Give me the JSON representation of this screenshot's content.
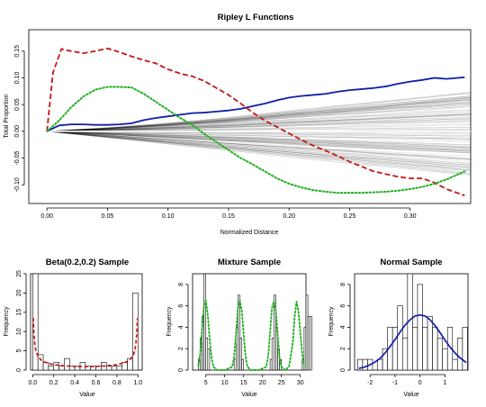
{
  "colors": {
    "blue": "#0f1ea8",
    "red": "#c41616",
    "green": "#22b022",
    "sims": "#000000",
    "zero": "#ffffff"
  },
  "chart_data": [
    {
      "id": "ripley",
      "type": "line",
      "title": "Ripley L Functions",
      "xlabel": "Normalized Distance",
      "ylabel": "Total Proportion",
      "xlim": [
        -0.015,
        0.35
      ],
      "ylim": [
        -0.135,
        0.19
      ],
      "xticks": [
        0.0,
        0.05,
        0.1,
        0.15,
        0.2,
        0.25,
        0.3
      ],
      "xtick_labels": [
        "0.00",
        "0.05",
        "0.10",
        "0.15",
        "0.20",
        "0.25",
        "0.30"
      ],
      "yticks": [
        -0.1,
        -0.05,
        0.0,
        0.05,
        0.1,
        0.15
      ],
      "ytick_labels": [
        "-0.10",
        "-0.05",
        "0.00",
        "0.05",
        "0.10",
        "0.15"
      ],
      "envelope": {
        "x": [
          0.0,
          0.05,
          0.1,
          0.15,
          0.2,
          0.25,
          0.3,
          0.35
        ],
        "upper": [
          0.0,
          0.007,
          0.016,
          0.027,
          0.04,
          0.052,
          0.064,
          0.076
        ],
        "lower": [
          0.0,
          -0.012,
          -0.024,
          -0.036,
          -0.048,
          -0.06,
          -0.072,
          -0.084
        ],
        "count": 120
      },
      "series": [
        {
          "color_key": "blue",
          "style": "solid",
          "x": [
            0.0,
            0.01,
            0.02,
            0.03,
            0.04,
            0.05,
            0.06,
            0.07,
            0.08,
            0.09,
            0.1,
            0.11,
            0.12,
            0.13,
            0.14,
            0.15,
            0.16,
            0.17,
            0.18,
            0.19,
            0.2,
            0.21,
            0.22,
            0.23,
            0.24,
            0.25,
            0.26,
            0.27,
            0.28,
            0.29,
            0.3,
            0.31,
            0.32,
            0.33,
            0.345
          ],
          "y": [
            0.0,
            0.011,
            0.013,
            0.013,
            0.012,
            0.012,
            0.013,
            0.015,
            0.021,
            0.025,
            0.028,
            0.031,
            0.034,
            0.035,
            0.037,
            0.039,
            0.042,
            0.047,
            0.052,
            0.058,
            0.063,
            0.066,
            0.068,
            0.07,
            0.074,
            0.077,
            0.079,
            0.081,
            0.084,
            0.089,
            0.093,
            0.096,
            0.1,
            0.098,
            0.101
          ]
        },
        {
          "color_key": "red",
          "style": "dashed",
          "x": [
            0.0,
            0.005,
            0.012,
            0.02,
            0.03,
            0.04,
            0.05,
            0.06,
            0.07,
            0.08,
            0.09,
            0.1,
            0.11,
            0.12,
            0.13,
            0.14,
            0.15,
            0.16,
            0.17,
            0.18,
            0.19,
            0.2,
            0.21,
            0.22,
            0.23,
            0.24,
            0.25,
            0.26,
            0.27,
            0.28,
            0.29,
            0.3,
            0.31,
            0.32,
            0.33,
            0.345
          ],
          "y": [
            0.0,
            0.11,
            0.154,
            0.15,
            0.146,
            0.15,
            0.155,
            0.148,
            0.14,
            0.133,
            0.127,
            0.116,
            0.108,
            0.103,
            0.094,
            0.081,
            0.068,
            0.052,
            0.035,
            0.02,
            0.008,
            -0.004,
            -0.016,
            -0.027,
            -0.036,
            -0.046,
            -0.057,
            -0.066,
            -0.075,
            -0.08,
            -0.085,
            -0.088,
            -0.088,
            -0.096,
            -0.108,
            -0.12
          ]
        },
        {
          "color_key": "green",
          "style": "dotted",
          "x": [
            0.0,
            0.01,
            0.02,
            0.03,
            0.04,
            0.05,
            0.06,
            0.07,
            0.08,
            0.09,
            0.1,
            0.11,
            0.12,
            0.13,
            0.14,
            0.15,
            0.16,
            0.17,
            0.18,
            0.19,
            0.2,
            0.21,
            0.22,
            0.23,
            0.24,
            0.25,
            0.26,
            0.27,
            0.28,
            0.29,
            0.3,
            0.31,
            0.32,
            0.33,
            0.345
          ],
          "y": [
            0.0,
            0.02,
            0.045,
            0.065,
            0.078,
            0.083,
            0.083,
            0.082,
            0.07,
            0.055,
            0.04,
            0.025,
            0.012,
            -0.005,
            -0.02,
            -0.035,
            -0.05,
            -0.062,
            -0.075,
            -0.088,
            -0.098,
            -0.105,
            -0.11,
            -0.113,
            -0.115,
            -0.115,
            -0.115,
            -0.114,
            -0.113,
            -0.111,
            -0.108,
            -0.104,
            -0.098,
            -0.09,
            -0.075
          ]
        }
      ]
    },
    {
      "id": "beta",
      "type": "bar",
      "title": "Beta(0.2,0.2) Sample",
      "xlabel": "Value",
      "ylabel": "Frequency",
      "xlim": [
        -0.02,
        1.04
      ],
      "ylim": [
        0,
        25
      ],
      "xticks": [
        0.0,
        0.2,
        0.4,
        0.6,
        0.8,
        1.0
      ],
      "xtick_labels": [
        "0.0",
        "0.2",
        "0.4",
        "0.6",
        "0.8",
        "1.0"
      ],
      "yticks": [
        0,
        5,
        10,
        15,
        20,
        25
      ],
      "ytick_labels": [
        "0",
        "5",
        "10",
        "15",
        "20",
        "25"
      ],
      "bin_start": 0.0,
      "bin_width": 0.05,
      "counts": [
        25,
        4,
        2,
        1,
        2,
        1,
        3,
        1,
        1,
        2,
        1,
        1,
        1,
        2,
        1,
        1,
        1,
        2,
        3,
        20
      ],
      "curve": {
        "color_key": "red",
        "style": "dashed",
        "x": [
          0.005,
          0.01,
          0.02,
          0.03,
          0.05,
          0.08,
          0.12,
          0.2,
          0.3,
          0.4,
          0.5,
          0.6,
          0.7,
          0.8,
          0.88,
          0.92,
          0.95,
          0.97,
          0.98,
          0.99,
          0.995
        ],
        "y": [
          13.5,
          10.0,
          6.8,
          5.0,
          3.6,
          2.6,
          2.0,
          1.4,
          1.1,
          0.95,
          0.9,
          0.95,
          1.1,
          1.4,
          2.0,
          2.6,
          3.6,
          5.0,
          6.8,
          10.0,
          13.5
        ]
      }
    },
    {
      "id": "mixture",
      "type": "bar",
      "title": "Mixture Sample",
      "xlabel": "Value",
      "ylabel": "Frequency",
      "xlim": [
        1.5,
        31.5
      ],
      "ylim": [
        0,
        9
      ],
      "xticks": [
        5,
        10,
        15,
        20,
        25,
        30
      ],
      "xtick_labels": [
        "5",
        "10",
        "15",
        "20",
        "25",
        "30"
      ],
      "yticks": [
        0,
        2,
        4,
        6,
        8
      ],
      "ytick_labels": [
        "0",
        "2",
        "4",
        "6",
        "8"
      ],
      "bin_start": 3.0,
      "bin_width": 0.5,
      "counts": [
        1,
        3,
        5,
        9,
        3,
        2,
        0,
        0,
        0,
        0,
        0,
        0,
        0,
        0,
        0,
        0,
        0,
        0,
        0,
        1,
        4,
        7,
        3,
        1,
        0,
        0,
        0,
        0,
        0,
        0,
        0,
        0,
        0,
        0,
        0,
        0,
        0,
        0,
        1,
        3,
        7,
        4,
        2,
        1,
        0,
        0,
        0,
        0,
        0,
        0,
        0,
        0,
        0,
        0,
        0,
        1,
        4,
        7,
        5,
        5
      ],
      "curve": {
        "color_key": "green",
        "style": "dotted",
        "x": [
          3.0,
          3.5,
          4.0,
          4.5,
          5.0,
          5.5,
          6.0,
          6.5,
          7.0,
          8.0,
          10.0,
          12.0,
          12.5,
          13.0,
          13.5,
          14.0,
          14.5,
          15.0,
          15.5,
          16.0,
          17.0,
          19.0,
          21.0,
          21.5,
          22.0,
          22.5,
          23.0,
          23.5,
          24.0,
          24.5,
          25.0,
          26.0,
          27.0,
          28.0,
          28.5,
          29.0,
          29.5,
          30.0,
          30.5,
          31.0
        ],
        "y": [
          0.4,
          1.5,
          3.8,
          5.9,
          6.5,
          5.2,
          3.0,
          1.2,
          0.3,
          0.0,
          0.0,
          0.3,
          1.3,
          3.5,
          5.8,
          6.5,
          5.6,
          3.4,
          1.3,
          0.3,
          0.0,
          0.0,
          0.3,
          1.3,
          3.5,
          5.8,
          6.4,
          5.6,
          3.3,
          1.2,
          0.3,
          0.0,
          0.3,
          2.5,
          5.0,
          6.4,
          5.5,
          3.5,
          1.5,
          0.4
        ]
      }
    },
    {
      "id": "normal",
      "type": "bar",
      "title": "Normal Sample",
      "xlabel": "Value",
      "ylabel": "Frequency",
      "xlim": [
        -2.62,
        1.92
      ],
      "ylim": [
        0,
        9
      ],
      "xticks": [
        -2,
        -1,
        0,
        1
      ],
      "xtick_labels": [
        "-2",
        "-1",
        "0",
        "1"
      ],
      "yticks": [
        0,
        2,
        4,
        6,
        8
      ],
      "ytick_labels": [
        "0",
        "2",
        "4",
        "6",
        "8"
      ],
      "bin_start": -2.5,
      "bin_width": 0.2,
      "counts": [
        1,
        1,
        1,
        0,
        1,
        2,
        4,
        4,
        6,
        3,
        9,
        4,
        8,
        4,
        5,
        4,
        3,
        2,
        4,
        1,
        3,
        4
      ],
      "curve": {
        "color_key": "blue",
        "style": "solid",
        "x": [
          -2.45,
          -2.2,
          -2.0,
          -1.8,
          -1.6,
          -1.4,
          -1.2,
          -1.0,
          -0.8,
          -0.6,
          -0.4,
          -0.2,
          0.0,
          0.2,
          0.4,
          0.6,
          0.8,
          1.0,
          1.2,
          1.4,
          1.6,
          1.85
        ],
        "y": [
          0.15,
          0.3,
          0.5,
          0.75,
          1.1,
          1.6,
          2.2,
          2.85,
          3.55,
          4.2,
          4.7,
          5.05,
          5.15,
          5.05,
          4.7,
          4.15,
          3.5,
          2.8,
          2.15,
          1.6,
          1.15,
          0.7
        ]
      }
    }
  ]
}
